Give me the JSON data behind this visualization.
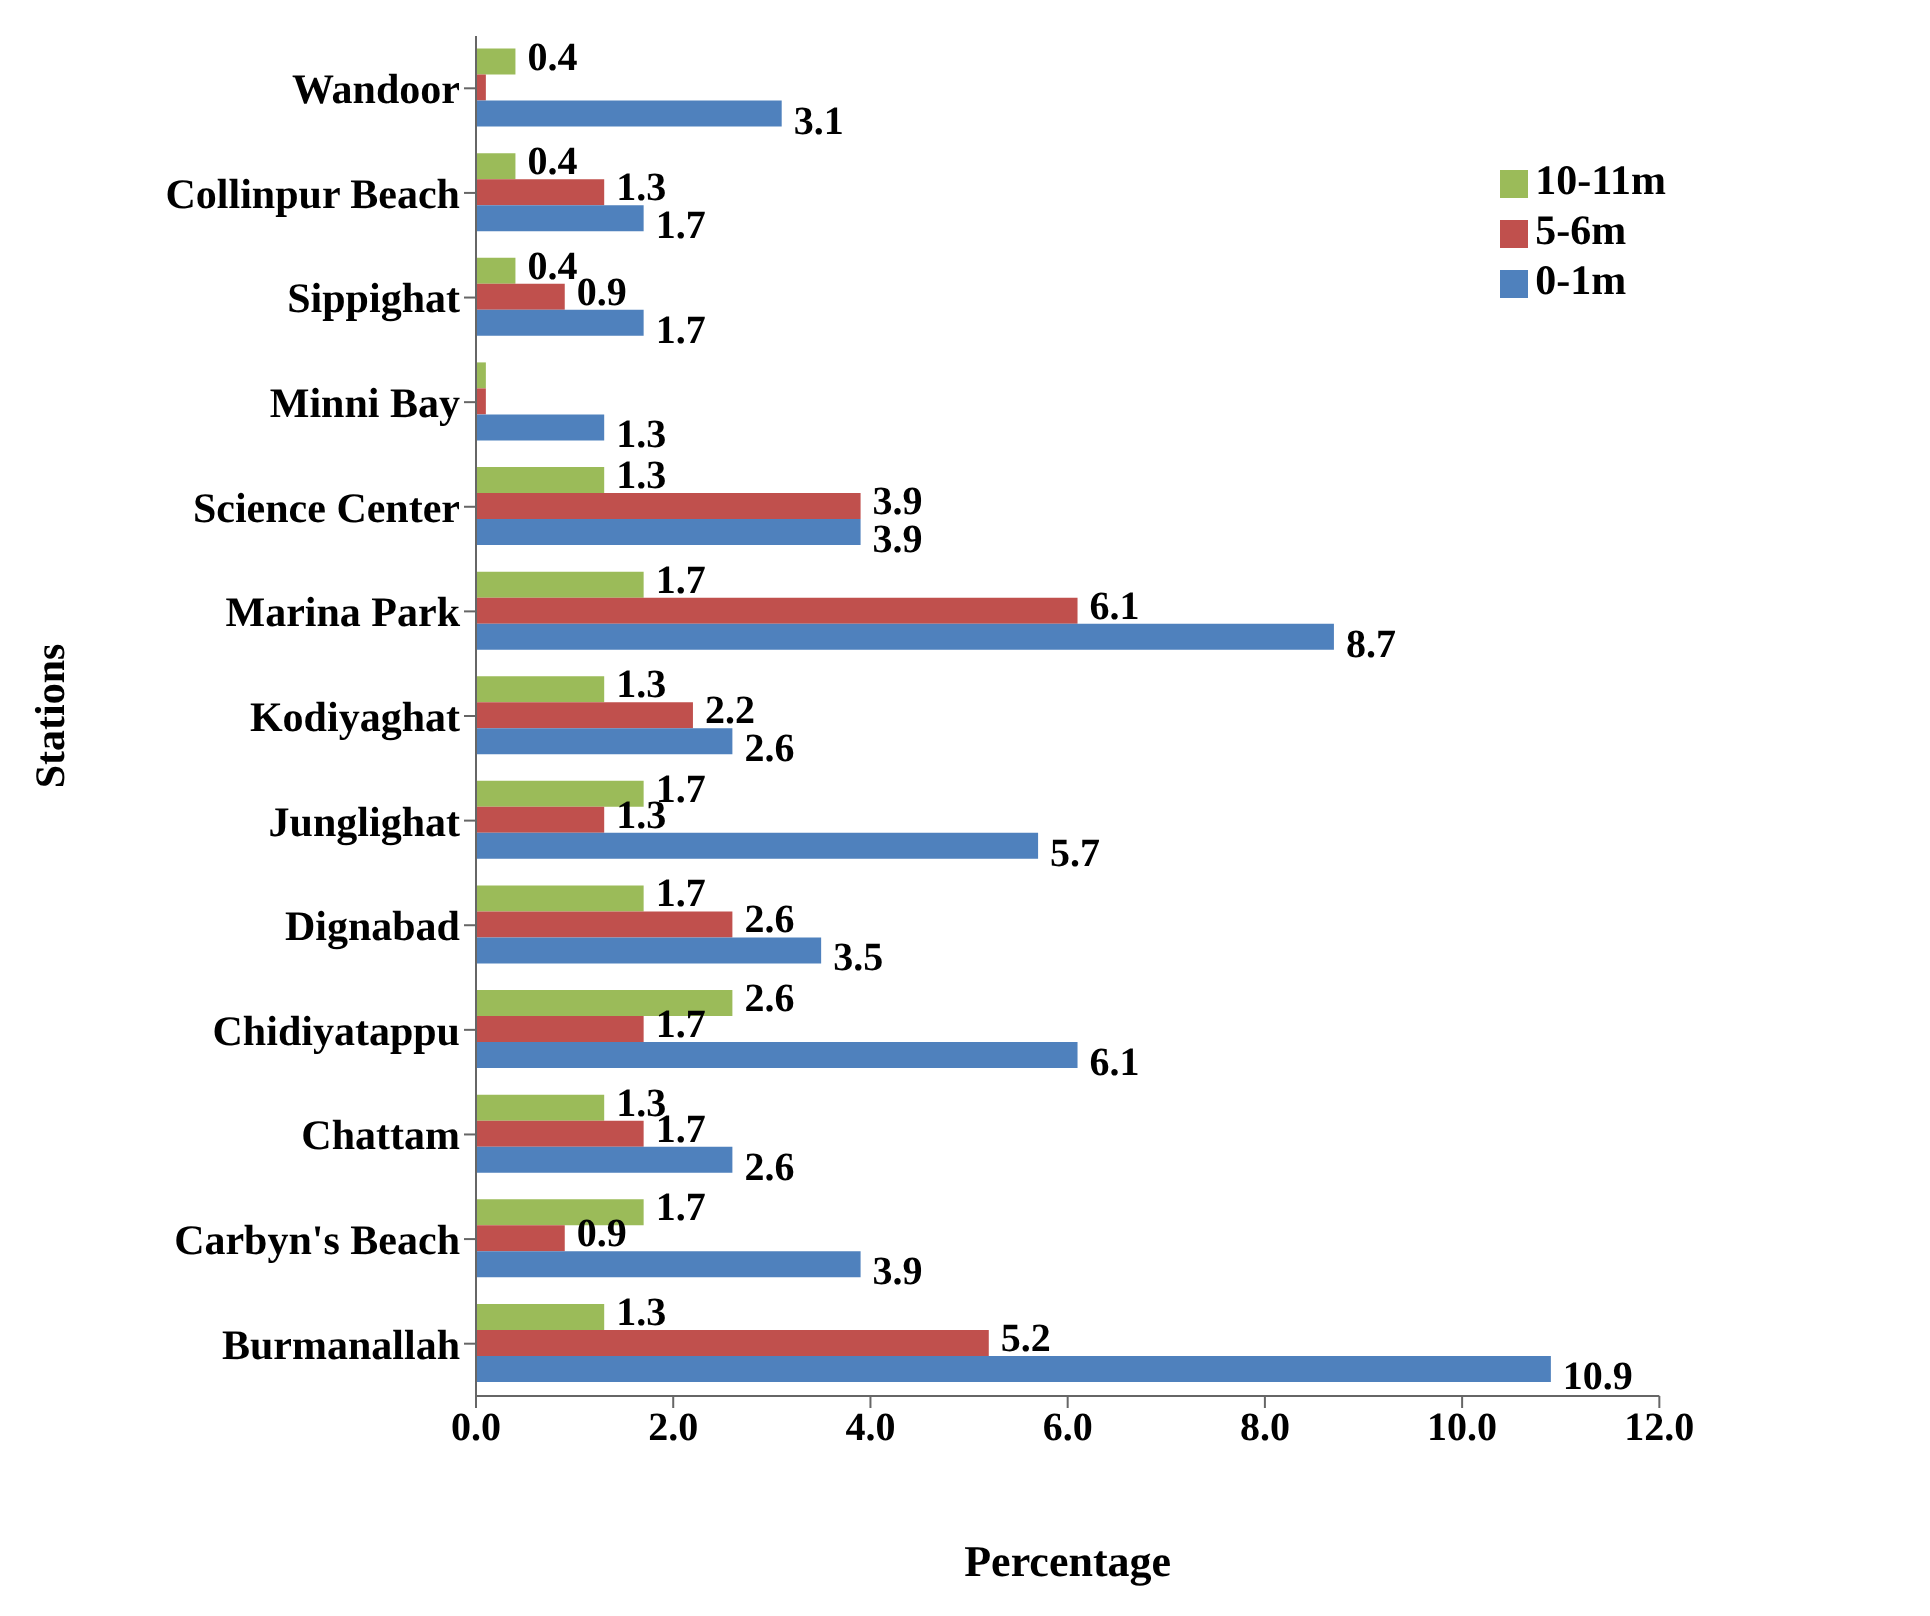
{
  "chart_data": {
    "type": "bar",
    "orientation": "horizontal",
    "xlabel": "Percentage",
    "ylabel": "Stations",
    "categories": [
      "Wandoor",
      "Collinpur Beach",
      "Sippighat",
      "Minni Bay",
      "Science Center",
      "Marina Park",
      "Kodiyaghat",
      "Junglighat",
      "Dignabad",
      "Chidiyatappu",
      "Chattam",
      "Carbyn's Beach",
      "Burmanallah"
    ],
    "series": [
      {
        "name": "10-11m",
        "color": "#9bbb59",
        "values": [
          0.4,
          0.4,
          0.4,
          0.1,
          1.3,
          1.7,
          1.3,
          1.7,
          1.7,
          2.6,
          1.3,
          1.7,
          1.3
        ],
        "value_labels": [
          "0.4",
          "0.4",
          "0.4",
          null,
          "1.3",
          "1.7",
          "1.3",
          "1.7",
          "1.7",
          "2.6",
          "1.3",
          "1.7",
          "1.3"
        ]
      },
      {
        "name": "5-6m",
        "color": "#c0504d",
        "values": [
          0.1,
          1.3,
          0.9,
          0.1,
          3.9,
          6.1,
          2.2,
          1.3,
          2.6,
          1.7,
          1.7,
          0.9,
          5.2
        ],
        "value_labels": [
          null,
          "1.3",
          "0.9",
          null,
          "3.9",
          "6.1",
          "2.2",
          "1.3",
          "2.6",
          "1.7",
          "1.7",
          "0.9",
          "5.2"
        ]
      },
      {
        "name": "0-1m",
        "color": "#4f81bd",
        "values": [
          3.1,
          1.7,
          1.7,
          1.3,
          3.9,
          8.7,
          2.6,
          5.7,
          3.5,
          6.1,
          2.6,
          3.9,
          10.9
        ],
        "value_labels": [
          "3.1",
          "1.7",
          "1.7",
          "1.3",
          "3.9",
          "8.7",
          "2.6",
          "5.7",
          "3.5",
          "6.1",
          "2.6",
          "3.9",
          "10.9"
        ]
      }
    ],
    "xlim": [
      0,
      12
    ],
    "xticks": [
      {
        "value": 0,
        "label": "0.0"
      },
      {
        "value": 2,
        "label": "2.0"
      },
      {
        "value": 4,
        "label": "4.0"
      },
      {
        "value": 6,
        "label": "6.0"
      },
      {
        "value": 8,
        "label": "8.0"
      },
      {
        "value": 10,
        "label": "10.0"
      },
      {
        "value": 12,
        "label": "12.0"
      }
    ],
    "grid": false,
    "legend": "right"
  }
}
